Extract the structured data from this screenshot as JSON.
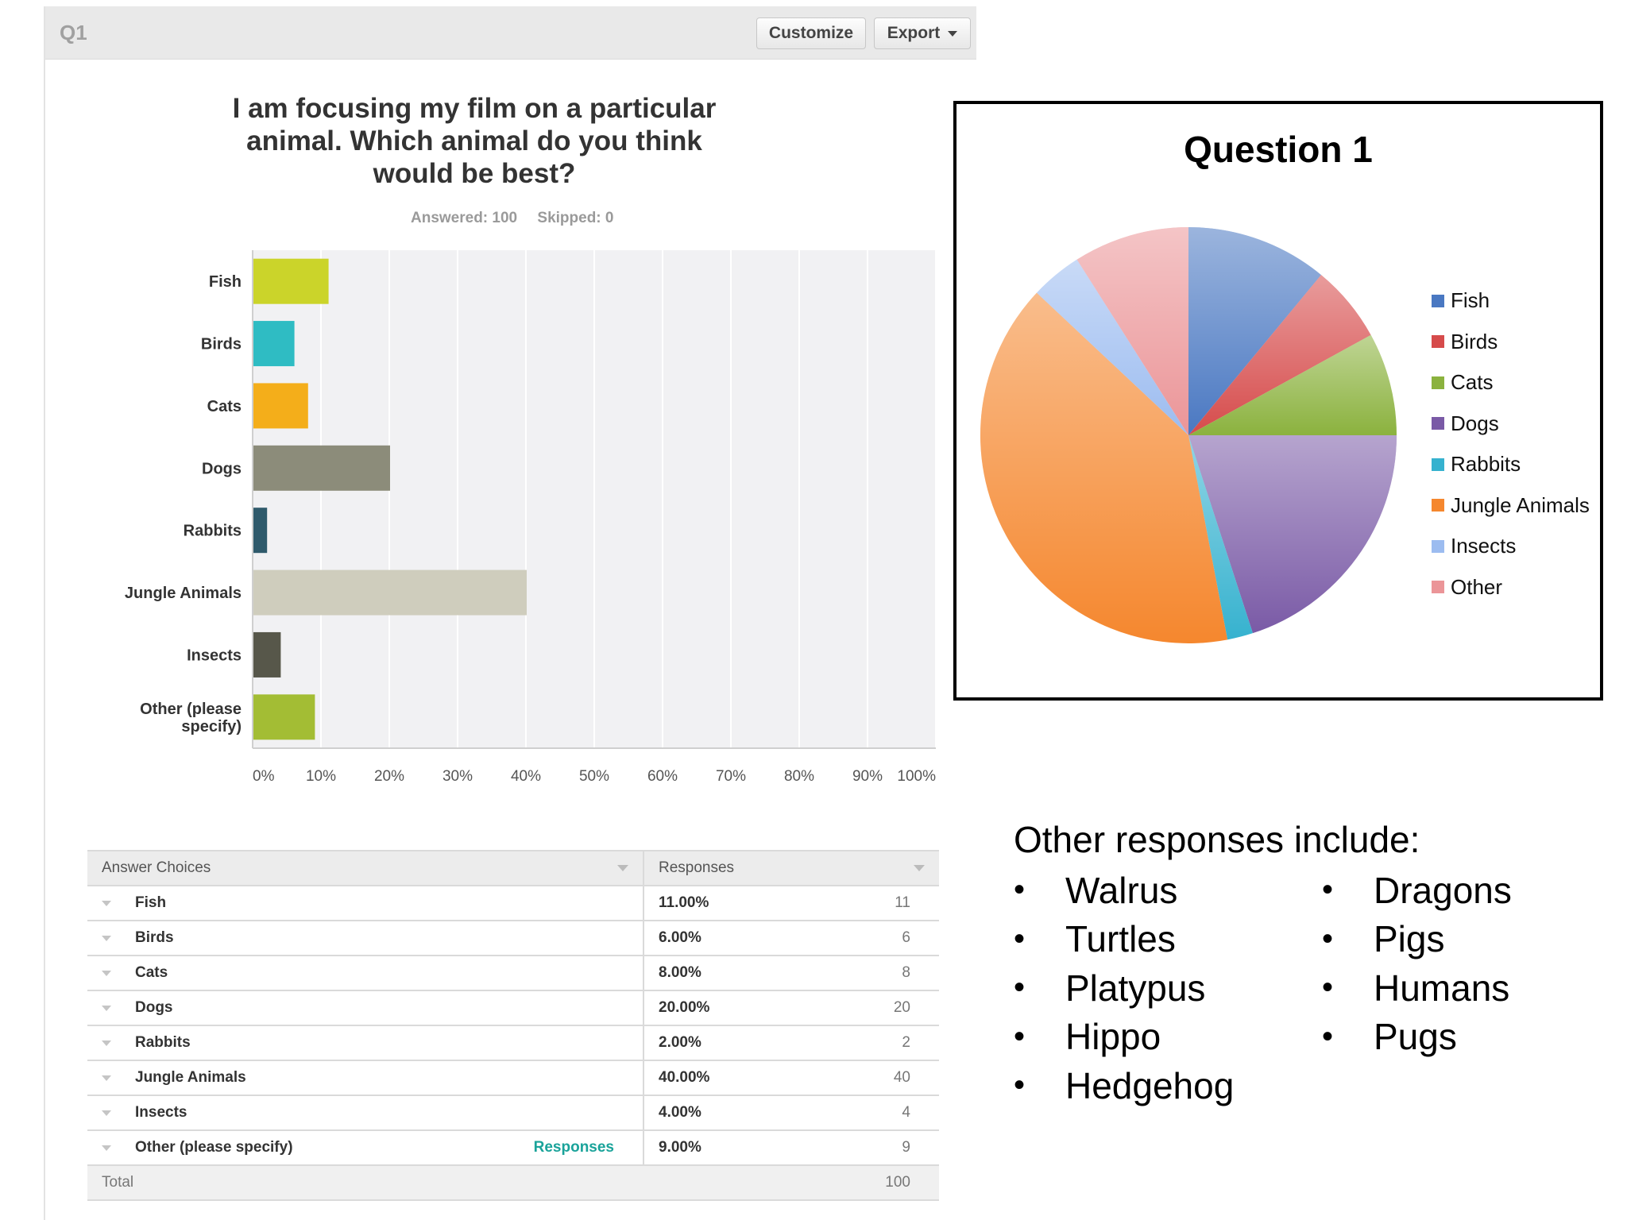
{
  "panel": {
    "question_id": "Q1",
    "customize_label": "Customize",
    "export_label": "Export",
    "title": "I am focusing my film on a particular animal. Which animal do you think would be best?",
    "answered": "Answered: 100",
    "skipped": "Skipped: 0"
  },
  "chart_data": [
    {
      "type": "bar",
      "orientation": "horizontal",
      "title": "I am focusing my film on a particular animal. Which animal do you think would be best?",
      "categories": [
        "Fish",
        "Birds",
        "Cats",
        "Dogs",
        "Rabbits",
        "Jungle Animals",
        "Insects",
        "Other (please specify)"
      ],
      "values": [
        11,
        6,
        8,
        20,
        2,
        40,
        4,
        9
      ],
      "colors": [
        "#cbd42a",
        "#2fbcc3",
        "#f4ae1a",
        "#8c8c7a",
        "#2f5a6b",
        "#cfcdbd",
        "#57574a",
        "#a3bd34"
      ],
      "xticks": [
        "0%",
        "10%",
        "20%",
        "30%",
        "40%",
        "50%",
        "60%",
        "70%",
        "80%",
        "90%",
        "100%"
      ],
      "xlim": [
        0,
        100
      ],
      "grid": true
    },
    {
      "type": "pie",
      "title": "Question 1",
      "labels": [
        "Fish",
        "Birds",
        "Cats",
        "Dogs",
        "Rabbits",
        "Jungle Animals",
        "Insects",
        "Other"
      ],
      "values": [
        11,
        6,
        8,
        20,
        2,
        40,
        4,
        9
      ],
      "colors": [
        "#4a78c2",
        "#d64b4b",
        "#8bb23e",
        "#7a5aa6",
        "#36b2cf",
        "#f5872e",
        "#9cbcf0",
        "#eb9598"
      ],
      "legend_position": "right"
    }
  ],
  "table": {
    "col_choices": "Answer Choices",
    "col_responses": "Responses",
    "responses_link": "Responses",
    "rows": [
      {
        "choice": "Fish",
        "pct": "11.00%",
        "count": "11"
      },
      {
        "choice": "Birds",
        "pct": "6.00%",
        "count": "6"
      },
      {
        "choice": "Cats",
        "pct": "8.00%",
        "count": "8"
      },
      {
        "choice": "Dogs",
        "pct": "20.00%",
        "count": "20"
      },
      {
        "choice": "Rabbits",
        "pct": "2.00%",
        "count": "2"
      },
      {
        "choice": "Jungle Animals",
        "pct": "40.00%",
        "count": "40"
      },
      {
        "choice": "Insects",
        "pct": "4.00%",
        "count": "4"
      },
      {
        "choice": "Other (please specify)",
        "pct": "9.00%",
        "count": "9"
      }
    ],
    "total_label": "Total",
    "total_value": "100"
  },
  "other": {
    "title": "Other responses include:",
    "col1": [
      "Walrus",
      "Turtles",
      "Platypus",
      "Hippo",
      "Hedgehog"
    ],
    "col2": [
      "Dragons",
      "Pigs",
      "Humans",
      "Pugs"
    ],
    "bullet": "•"
  }
}
